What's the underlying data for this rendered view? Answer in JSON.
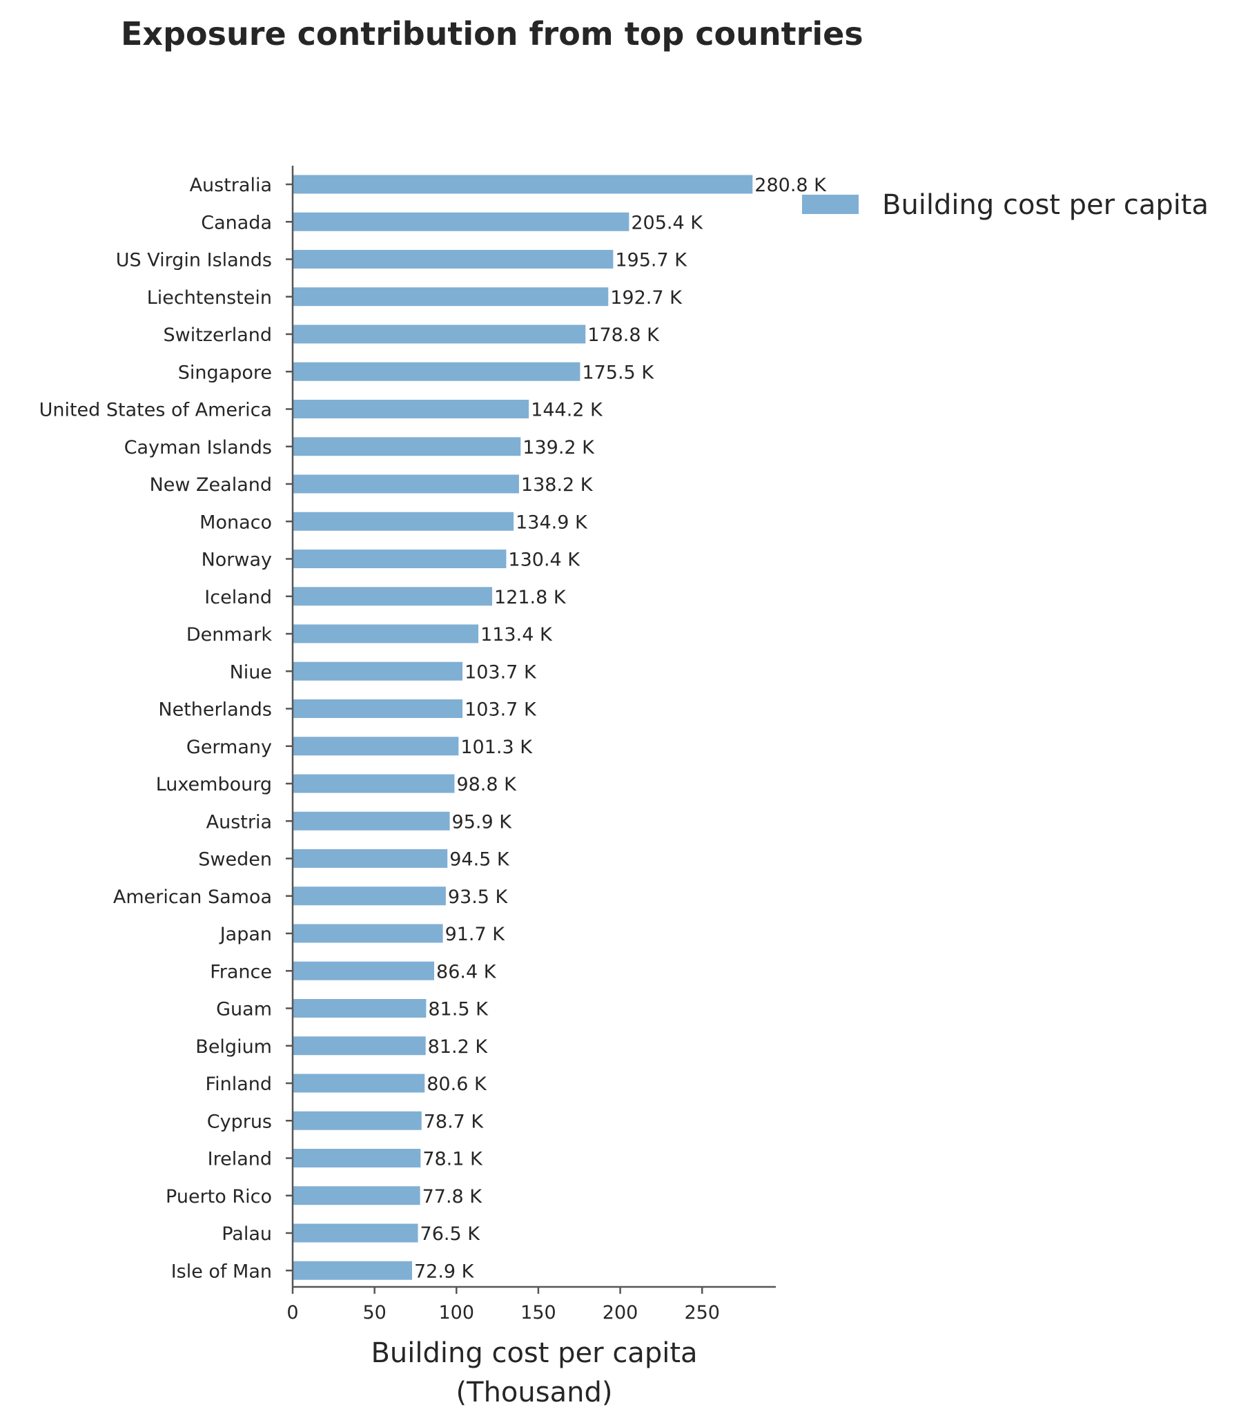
{
  "chart_data": {
    "type": "bar",
    "orientation": "horizontal",
    "title": "Exposure contribution from top countries",
    "xlabel": "Building cost per capita",
    "xlabel_unit": "(Thousand)",
    "ylabel": "",
    "xlim": [
      0,
      295
    ],
    "xticks": [
      0,
      50,
      100,
      150,
      200,
      250
    ],
    "grid": false,
    "legend_position": "top-right",
    "color": "#80afd4",
    "series": [
      {
        "name": "Building cost per capita",
        "categories": [
          "Australia",
          "Canada",
          "US Virgin Islands",
          "Liechtenstein",
          "Switzerland",
          "Singapore",
          "United States of America",
          "Cayman Islands",
          "New Zealand",
          "Monaco",
          "Norway",
          "Iceland",
          "Denmark",
          "Niue",
          "Netherlands",
          "Germany",
          "Luxembourg",
          "Austria",
          "Sweden",
          "American Samoa",
          "Japan",
          "France",
          "Guam",
          "Belgium",
          "Finland",
          "Cyprus",
          "Ireland",
          "Puerto Rico",
          "Palau",
          "Isle of Man"
        ],
        "values": [
          280.8,
          205.4,
          195.7,
          192.7,
          178.8,
          175.5,
          144.2,
          139.2,
          138.2,
          134.9,
          130.4,
          121.8,
          113.4,
          103.7,
          103.7,
          101.3,
          98.8,
          95.9,
          94.5,
          93.5,
          91.7,
          86.4,
          81.5,
          81.2,
          80.6,
          78.7,
          78.1,
          77.8,
          76.5,
          72.9
        ],
        "labels": [
          "280.8 K",
          "205.4 K",
          "195.7 K",
          "192.7 K",
          "178.8 K",
          "175.5 K",
          "144.2 K",
          "139.2 K",
          "138.2 K",
          "134.9 K",
          "130.4 K",
          "121.8 K",
          "113.4 K",
          "103.7 K",
          "103.7 K",
          "101.3 K",
          "98.8 K",
          "95.9 K",
          "94.5 K",
          "93.5 K",
          "91.7 K",
          "86.4 K",
          "81.5 K",
          "81.2 K",
          "80.6 K",
          "78.7 K",
          "78.1 K",
          "77.8 K",
          "76.5 K",
          "72.9 K"
        ]
      }
    ]
  }
}
